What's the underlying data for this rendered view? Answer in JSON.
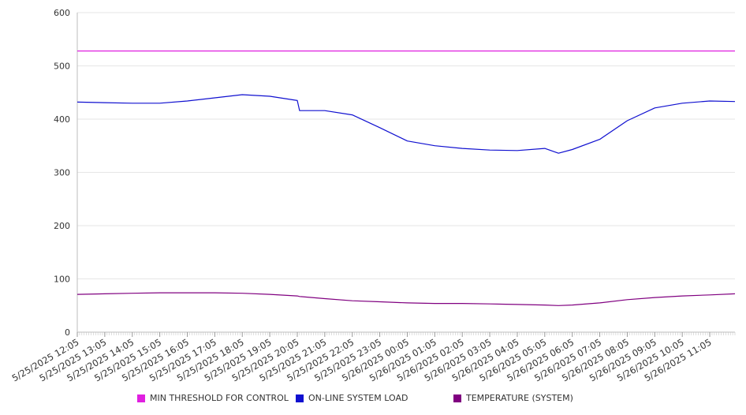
{
  "chart_data": {
    "type": "line",
    "title": "",
    "xlabel": "",
    "ylabel": "",
    "ylim": [
      0,
      600
    ],
    "yticks": [
      "0",
      "100",
      "200",
      "300",
      "400",
      "500",
      "600"
    ],
    "grid": true,
    "legend_position": "bottom",
    "x_tick_labels": [
      "5/25/2025 12:05",
      "5/25/2025 13:05",
      "5/25/2025 14:05",
      "5/25/2025 15:05",
      "5/25/2025 16:05",
      "5/25/2025 17:05",
      "5/25/2025 18:05",
      "5/25/2025 19:05",
      "5/25/2025 20:05",
      "5/25/2025 21:05",
      "5/25/2025 22:05",
      "5/25/2025 23:05",
      "5/26/2025 00:05",
      "5/26/2025 01:05",
      "5/26/2025 02:05",
      "5/26/2025 03:05",
      "5/26/2025 04:05",
      "5/26/2025 05:05",
      "5/26/2025 06:05",
      "5/26/2025 07:05",
      "5/26/2025 08:05",
      "5/26/2025 09:05",
      "5/26/2025 10:05",
      "5/26/2025 11:05"
    ],
    "x": [
      "5/25/2025 12:05",
      "5/25/2025 13:05",
      "5/25/2025 14:05",
      "5/25/2025 15:05",
      "5/25/2025 16:05",
      "5/25/2025 17:05",
      "5/25/2025 18:05",
      "5/25/2025 19:05",
      "5/25/2025 20:05",
      "5/25/2025 20:10",
      "5/25/2025 21:05",
      "5/25/2025 22:05",
      "5/25/2025 23:05",
      "5/26/2025 00:05",
      "5/26/2025 01:05",
      "5/26/2025 02:05",
      "5/26/2025 03:05",
      "5/26/2025 04:05",
      "5/26/2025 05:05",
      "5/26/2025 05:35",
      "5/26/2025 06:05",
      "5/26/2025 07:05",
      "5/26/2025 08:05",
      "5/26/2025 09:05",
      "5/26/2025 10:05",
      "5/26/2025 11:05",
      "5/26/2025 12:00"
    ],
    "series": [
      {
        "name": "MIN THRESHOLD FOR CONTROL",
        "color": "#e020e0",
        "values": [
          528,
          528,
          528,
          528,
          528,
          528,
          528,
          528,
          528,
          528,
          528,
          528,
          528,
          528,
          528,
          528,
          528,
          528,
          528,
          528,
          528,
          528,
          528,
          528,
          528,
          528,
          528
        ]
      },
      {
        "name": "ON-LINE SYSTEM LOAD",
        "color": "#1010d0",
        "values": [
          432,
          431,
          430,
          430,
          434,
          440,
          446,
          443,
          435,
          416,
          416,
          408,
          384,
          359,
          350,
          345,
          342,
          341,
          345,
          336,
          343,
          362,
          397,
          421,
          430,
          434,
          433
        ]
      },
      {
        "name": "TEMPERATURE (SYSTEM)",
        "color": "#800080",
        "values": [
          71,
          72,
          73,
          74,
          74,
          74,
          73,
          71,
          68,
          67,
          63,
          59,
          57,
          55,
          54,
          54,
          53,
          52,
          51,
          50,
          51,
          55,
          61,
          65,
          68,
          70,
          72
        ]
      }
    ]
  }
}
